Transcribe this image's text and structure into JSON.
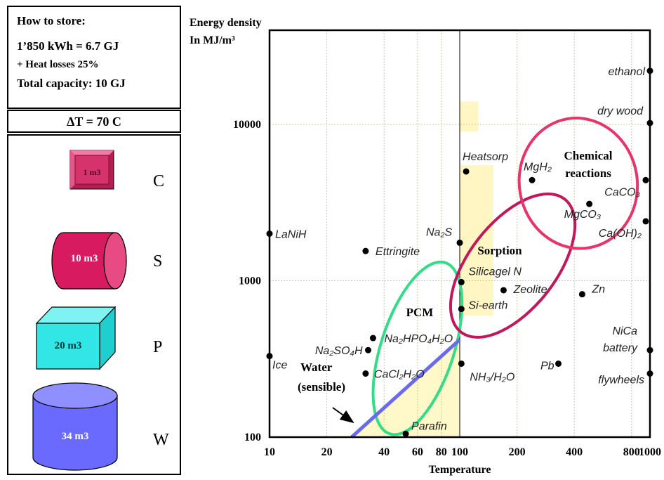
{
  "storage_info": {
    "heading": "How to store:",
    "energy": "1’850 kWh = 6.7 GJ",
    "losses": "+ Heat losses 25%",
    "capacity": "Total capacity: 10 GJ",
    "delta_t": "ΔT = 70 C"
  },
  "storage_volumes": [
    {
      "letter": "C",
      "volume": "1 m3",
      "shape": "cube-bevel",
      "color": "#d6336c"
    },
    {
      "letter": "S",
      "volume": "10 m3",
      "shape": "cylinder-horizontal",
      "color": "#d81b60"
    },
    {
      "letter": "P",
      "volume": "20 m3",
      "shape": "box",
      "color": "#33e6e6"
    },
    {
      "letter": "W",
      "volume": "34 m3",
      "shape": "cylinder-vertical",
      "color": "#6a6aff"
    }
  ],
  "chart_data": {
    "type": "scatter",
    "ylabel": "Energy density\nIn MJ/m³",
    "xlabel": "Temperature",
    "x_scale": "log",
    "y_scale": "log",
    "xlim": [
      10,
      1000
    ],
    "ylim": [
      100,
      40000
    ],
    "x_ticks": [
      "10",
      "20",
      "40",
      "60",
      "80",
      "100",
      "200",
      "400",
      "800",
      "1000"
    ],
    "x_tick_values": [
      10,
      20,
      40,
      60,
      80,
      100,
      200,
      400,
      800,
      1000
    ],
    "y_ticks": [
      "100",
      "1000",
      "10000"
    ],
    "y_tick_values": [
      100,
      1000,
      10000
    ],
    "grid": true,
    "points": [
      {
        "label": "ethanol",
        "x": 1000,
        "y": 22000
      },
      {
        "label": "dry wood",
        "x": 1000,
        "y": 10200
      },
      {
        "label": "Heatsorp",
        "x": 108,
        "y": 5000
      },
      {
        "label": "MgH₂",
        "x": 240,
        "y": 4400
      },
      {
        "label": "CaCO₃",
        "x": 950,
        "y": 4400
      },
      {
        "label": "MgCO₃",
        "x": 480,
        "y": 3100
      },
      {
        "label": "Ca(OH)₂",
        "x": 950,
        "y": 2400
      },
      {
        "label": "LaNiH",
        "x": 10,
        "y": 2000
      },
      {
        "label": "Na₂S",
        "x": 100,
        "y": 1750
      },
      {
        "label": "Ettringite",
        "x": 32,
        "y": 1550
      },
      {
        "label": "Silicagel N",
        "x": 102,
        "y": 980
      },
      {
        "label": "Zeolite",
        "x": 170,
        "y": 870
      },
      {
        "label": "Zn",
        "x": 440,
        "y": 820
      },
      {
        "label": "Si-earth",
        "x": 102,
        "y": 660
      },
      {
        "label": "Na₂HPO₄H₂O",
        "x": 35,
        "y": 430
      },
      {
        "label": "Na₂SO₄H",
        "x": 33,
        "y": 360
      },
      {
        "label": "NiCa battery",
        "x": 1000,
        "y": 360
      },
      {
        "label": "Ice",
        "x": 10,
        "y": 330
      },
      {
        "label": "NH₃/H₂O",
        "x": 102,
        "y": 295
      },
      {
        "label": "Pb",
        "x": 330,
        "y": 295
      },
      {
        "label": "CaCl₂H₂O",
        "x": 32,
        "y": 255
      },
      {
        "label": "flywheels",
        "x": 1000,
        "y": 255
      },
      {
        "label": "Parafin",
        "x": 52,
        "y": 105
      }
    ],
    "regions": [
      {
        "label": "PCM",
        "color": "#33dd88"
      },
      {
        "label": "Sorption",
        "color": "#c2185b"
      },
      {
        "label": "Chemical\nreactions",
        "color": "#e8336b"
      }
    ],
    "annotation": {
      "label": "Water\n(sensible)",
      "line_color": "#6a6aee",
      "x1": 27,
      "y1": 100,
      "x2": 100,
      "y2": 420
    }
  }
}
